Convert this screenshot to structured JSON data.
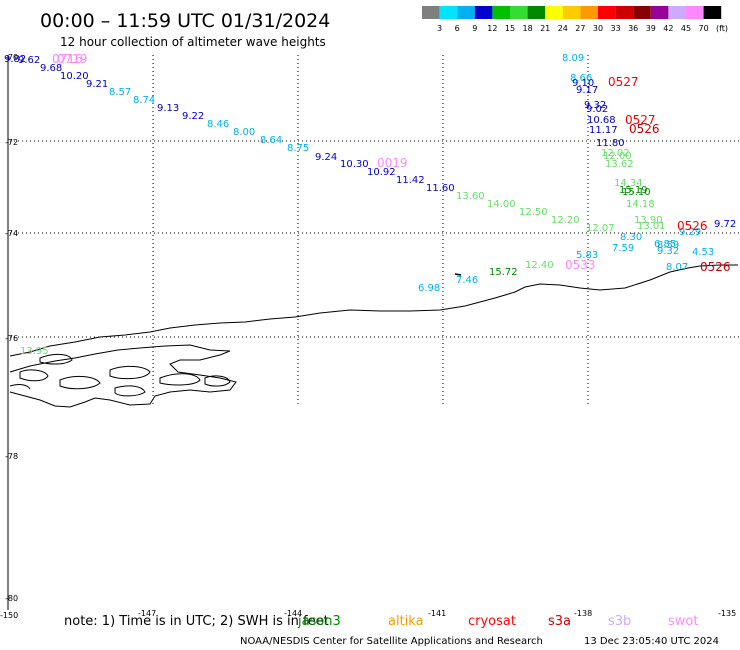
{
  "header": {
    "title": "00:00 – 11:59 UTC 01/31/2024",
    "subtitle": "12 hour collection of altimeter wave heights"
  },
  "legend": {
    "ticks": [
      "3",
      "6",
      "9",
      "12",
      "15",
      "18",
      "21",
      "24",
      "27",
      "30",
      "33",
      "36",
      "39",
      "42",
      "45",
      "70"
    ],
    "unit": "(ft)",
    "colors": [
      "#7f7f7f",
      "#00e5ff",
      "#00b0f0",
      "#0000cc",
      "#00c000",
      "#33dd33",
      "#008800",
      "#ffff00",
      "#ffcc00",
      "#ff9900",
      "#ff0000",
      "#cc0000",
      "#880000",
      "#990099",
      "#ccaaff",
      "#ff88ff",
      "#000000"
    ]
  },
  "lat_labels": [
    "-70",
    "-72",
    "-74",
    "-76",
    "-78",
    "-78",
    "-80"
  ],
  "lon_labels": [
    "-150",
    "-147",
    "-144",
    "-141",
    "-138",
    "-135"
  ],
  "wave_labels": {
    "track_a": [
      "9.82",
      "9.62",
      "9.68",
      "10.20",
      "9.21",
      "8.57",
      "8.74",
      "9.13",
      "9.22",
      "8.46",
      "8.00",
      "8.64",
      "8.75",
      "9.24",
      "10.30",
      "10.92",
      "11.42",
      "11.60",
      "13.60",
      "14.00",
      "12.50",
      "12.20",
      "12.07"
    ],
    "track_b": [
      "8.09",
      "8.66",
      "9.10",
      "9.17",
      "9.32",
      "9.02",
      "10.68",
      "11.17",
      "11.80",
      "12.02",
      "12.00",
      "13.62",
      "14.34",
      "15.19",
      "15.10",
      "14.18",
      "13.90",
      "13.01",
      "8.30",
      "7.59",
      "6.85",
      "8.59",
      "9.32",
      "4.53",
      "8.07",
      "9.72",
      "9.29"
    ],
    "track_c": [
      "6.98",
      "7.46",
      "15.72",
      "12.40",
      "5.83",
      "13.95"
    ]
  },
  "time_labels": [
    "0716",
    "0719",
    "0019",
    "0527",
    "0527",
    "0526",
    "0526",
    "0526",
    "0533"
  ],
  "note": {
    "text": "note:  1) Time is in UTC;  2) SWH is in feet",
    "satellites": [
      "jason3",
      "altika",
      "cryosat",
      "s3a",
      "s3b",
      "swot"
    ],
    "satellite_colors": [
      "#008800",
      "#ff9900",
      "#ff0000",
      "#cc0000",
      "#ccaaff",
      "#ff88ff"
    ]
  },
  "footer": {
    "credit": "NOAA/NESDIS Center for Satellite Applications and Research",
    "timestamp": "13 Dec 23:05:40 UTC 2024"
  }
}
